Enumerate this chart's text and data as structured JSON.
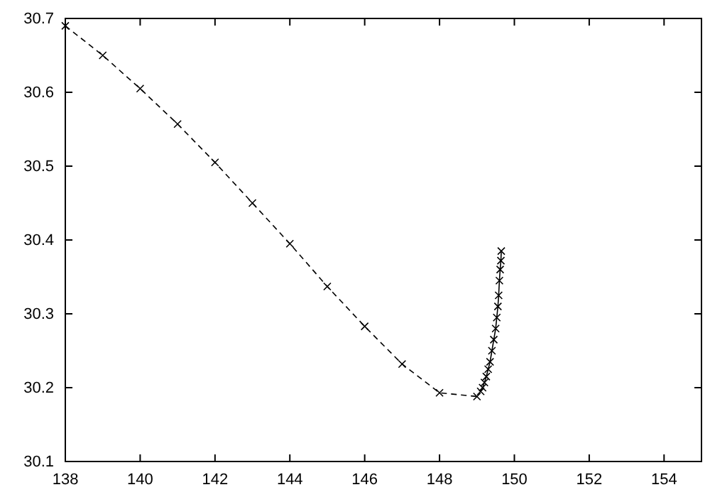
{
  "chart_data": {
    "type": "line",
    "xlim": [
      138,
      155
    ],
    "xticks": [
      138,
      140,
      142,
      144,
      146,
      148,
      150,
      152,
      154
    ],
    "ylim": [
      30.1,
      30.7
    ],
    "yticks": [
      30.1,
      30.2,
      30.3,
      30.4,
      30.5,
      30.6,
      30.7
    ],
    "grid": false,
    "series": [
      {
        "color": "#000000",
        "marker": "cross",
        "line_style": "dashed",
        "x": [
          138,
          139,
          140,
          141,
          142,
          143,
          144,
          145,
          146,
          147,
          148,
          149.0
        ],
        "values": [
          30.69,
          30.65,
          30.605,
          30.557,
          30.505,
          30.45,
          30.395,
          30.337,
          30.283,
          30.232,
          30.193,
          30.188
        ]
      },
      {
        "color": "#000000",
        "marker": "cross",
        "line_style": "solid",
        "x": [
          149.1,
          149.15,
          149.2,
          149.25,
          149.3,
          149.35,
          149.4,
          149.45,
          149.5,
          149.53,
          149.56,
          149.58,
          149.6,
          149.62,
          149.64,
          149.65
        ],
        "values": [
          30.195,
          30.2,
          30.207,
          30.215,
          30.225,
          30.235,
          30.25,
          30.265,
          30.28,
          30.295,
          30.31,
          30.325,
          30.345,
          30.36,
          30.372,
          30.385
        ]
      }
    ]
  }
}
